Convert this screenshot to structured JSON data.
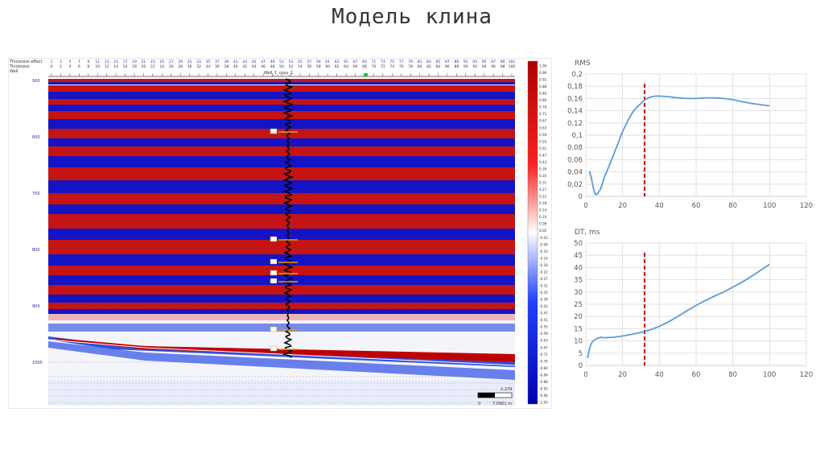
{
  "title": "Модель клина",
  "seismic_panel": {
    "header_rows": [
      "Thickness effect",
      "Thickness",
      "Well"
    ],
    "thickness_effect_ticks": [
      "1",
      "3",
      "5",
      "7",
      "9",
      "11",
      "13",
      "15",
      "17",
      "19",
      "21",
      "23",
      "25",
      "27",
      "29",
      "31",
      "33",
      "35",
      "37",
      "39",
      "41",
      "43",
      "45",
      "47",
      "49",
      "51",
      "53",
      "55",
      "57",
      "59",
      "61",
      "63",
      "65",
      "67",
      "69",
      "71",
      "73",
      "75",
      "77",
      "79",
      "81",
      "83",
      "85",
      "87",
      "89",
      "91",
      "93",
      "95",
      "97",
      "99",
      "101"
    ],
    "thickness_ticks": [
      "0",
      "2",
      "4",
      "6",
      "8",
      "10",
      "12",
      "14",
      "16",
      "18",
      "20",
      "22",
      "24",
      "26",
      "28",
      "30",
      "32",
      "34",
      "36",
      "38",
      "40",
      "42",
      "44",
      "46",
      "48",
      "50",
      "52",
      "54",
      "56",
      "58",
      "60",
      "62",
      "64",
      "66",
      "68",
      "70",
      "72",
      "74",
      "76",
      "78",
      "80",
      "82",
      "84",
      "86",
      "88",
      "90",
      "92",
      "94",
      "96",
      "98",
      "100"
    ],
    "well_label": "Well_1_copy_1",
    "depth_ticks": [
      "500",
      "600",
      "700",
      "800",
      "900",
      "1000"
    ],
    "scale_label": "1:279",
    "scale_bar_labels": [
      "0",
      "7.0901 m"
    ],
    "colorbar_ticks": [
      "1.00",
      "0.96",
      "0.92",
      "0.88",
      "0.84",
      "0.80",
      "0.76",
      "0.71",
      "0.67",
      "0.63",
      "0.59",
      "0.55",
      "0.51",
      "0.47",
      "0.43",
      "0.39",
      "0.35",
      "0.31",
      "0.27",
      "0.22",
      "0.18",
      "0.14",
      "0.10",
      "0.06",
      "0.02",
      "-0.02",
      "-0.06",
      "-0.10",
      "-0.14",
      "-0.18",
      "-0.22",
      "-0.27",
      "-0.31",
      "-0.35",
      "-0.39",
      "-0.43",
      "-0.47",
      "-0.51",
      "-0.55",
      "-0.59",
      "-0.63",
      "-0.67",
      "-0.71",
      "-0.76",
      "-0.80",
      "-0.84",
      "-0.88",
      "-0.92",
      "-0.96",
      "-1.00"
    ],
    "colors": {
      "positive": "#c00000",
      "negative": "#0000c0",
      "neutral": "#ffffff",
      "well_marker": "#e0a000",
      "accent": "#2a2aa0"
    }
  },
  "chart_data": [
    {
      "type": "line",
      "title": "RMS",
      "xlabel": "",
      "ylabel": "",
      "xlim": [
        0,
        120
      ],
      "ylim": [
        0,
        0.2
      ],
      "x_ticks": [
        "0",
        "20",
        "40",
        "60",
        "80",
        "100",
        "120"
      ],
      "y_ticks": [
        "0",
        "0,02",
        "0,04",
        "0,06",
        "0,08",
        "0,1",
        "0,12",
        "0,14",
        "0,16",
        "0,18",
        "0,2"
      ],
      "grid": true,
      "color": "#5b9bd5",
      "marker_line_x": 32,
      "marker_line_color": "#c00000",
      "series": [
        {
          "x": [
            2,
            3,
            4,
            5,
            6,
            8,
            10,
            12,
            14,
            16,
            18,
            20,
            22,
            24,
            26,
            28,
            30,
            32,
            34,
            36,
            38,
            40,
            45,
            50,
            55,
            60,
            65,
            70,
            75,
            80,
            85,
            90,
            95,
            100
          ],
          "y": [
            0.041,
            0.03,
            0.015,
            0.004,
            0.003,
            0.012,
            0.03,
            0.045,
            0.06,
            0.075,
            0.09,
            0.106,
            0.118,
            0.13,
            0.14,
            0.146,
            0.152,
            0.158,
            0.161,
            0.163,
            0.164,
            0.164,
            0.163,
            0.161,
            0.16,
            0.16,
            0.161,
            0.161,
            0.16,
            0.158,
            0.155,
            0.152,
            0.15,
            0.148
          ]
        }
      ]
    },
    {
      "type": "line",
      "title": "DT, ms",
      "xlabel": "",
      "ylabel": "",
      "xlim": [
        0,
        120
      ],
      "ylim": [
        0,
        50
      ],
      "x_ticks": [
        "0",
        "20",
        "40",
        "60",
        "80",
        "100",
        "120"
      ],
      "y_ticks": [
        "0",
        "5",
        "10",
        "15",
        "20",
        "25",
        "30",
        "35",
        "40",
        "45",
        "50"
      ],
      "grid": true,
      "color": "#5b9bd5",
      "marker_line_x": 32,
      "marker_line_color": "#c00000",
      "series": [
        {
          "x": [
            1,
            2,
            3,
            4,
            6,
            8,
            10,
            15,
            20,
            25,
            30,
            35,
            40,
            45,
            50,
            55,
            60,
            65,
            70,
            75,
            80,
            85,
            90,
            95,
            100
          ],
          "y": [
            3,
            7,
            9,
            10,
            11,
            11.5,
            11.3,
            11.5,
            12,
            12.7,
            13.5,
            14.5,
            16,
            17.8,
            20,
            22.3,
            24.5,
            26.5,
            28.3,
            30,
            32,
            34,
            36.3,
            38.8,
            41.3
          ]
        }
      ]
    }
  ]
}
